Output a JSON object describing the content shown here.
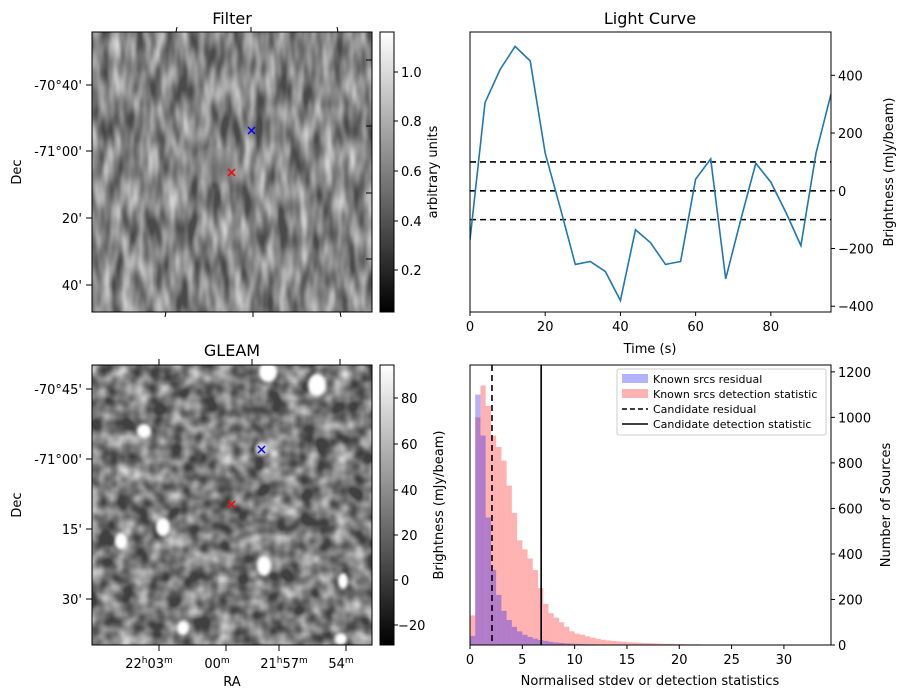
{
  "panels": {
    "filter": {
      "title": "Filter",
      "ylabel": "Dec",
      "yticks": [
        "-70°40'",
        "-71°00'",
        "20'",
        "40'"
      ],
      "colorbar": {
        "label": "arbitrary units",
        "ticks": [
          "0.2",
          "0.4",
          "0.6",
          "0.8",
          "1.0"
        ],
        "cmap": "gray"
      },
      "markers": [
        {
          "symbol": "x",
          "color": "#0000ff"
        },
        {
          "symbol": "x",
          "color": "#ff0000"
        }
      ]
    },
    "gleam": {
      "title": "GLEAM",
      "ylabel": "Dec",
      "xlabel": "RA",
      "yticks": [
        "-70°45'",
        "-71°00'",
        "15'",
        "30'"
      ],
      "xticks": [
        {
          "main": "22",
          "sup1": "h",
          "mid": "03",
          "sup2": "m"
        },
        {
          "main": "00",
          "sup2": "m"
        },
        {
          "main": "21",
          "sup1": "h",
          "mid": "57",
          "sup2": "m"
        },
        {
          "main": "54",
          "sup2": "m"
        }
      ],
      "colorbar": {
        "label": "Brightness (mJy/beam)",
        "ticks": [
          "80",
          "60",
          "40",
          "20",
          "0",
          "−20"
        ],
        "cmap": "gray"
      },
      "markers": [
        {
          "symbol": "x",
          "color": "#0000ff"
        },
        {
          "symbol": "x",
          "color": "#ff0000"
        }
      ]
    }
  },
  "chart_data": [
    {
      "type": "line",
      "title": "Light Curve",
      "xlabel": "Time (s)",
      "ylabel": "Brightness (mJy/beam)",
      "xlim": [
        0,
        96
      ],
      "ylim": [
        -420,
        550
      ],
      "xticks": [
        0,
        20,
        40,
        60,
        80
      ],
      "yticks": [
        -400,
        -200,
        0,
        200,
        400
      ],
      "y_axis_side": "right",
      "line_color": "#1f77b4",
      "series": [
        {
          "x": [
            0,
            4,
            8,
            12,
            16,
            20,
            24,
            28,
            32,
            36,
            40,
            44,
            48,
            52,
            56,
            60,
            64,
            68,
            72,
            76,
            80,
            84,
            88,
            92,
            96
          ],
          "y": [
            -170,
            305,
            420,
            500,
            450,
            130,
            -60,
            -255,
            -245,
            -280,
            -380,
            -135,
            -180,
            -255,
            -245,
            40,
            110,
            -305,
            -100,
            95,
            30,
            -75,
            -190,
            130,
            335
          ]
        }
      ],
      "hlines": [
        {
          "y": 100,
          "style": "dashed",
          "color": "#000000"
        },
        {
          "y": 0,
          "style": "dashed",
          "color": "#000000"
        },
        {
          "y": -100,
          "style": "dashed",
          "color": "#000000"
        }
      ]
    },
    {
      "type": "histogram",
      "xlabel": "Normalised stdev or detection statistics",
      "ylabel": "Number of Sources",
      "ylabel_left": "Brightness (mJy/beam)",
      "xlim": [
        0,
        34.5
      ],
      "ylim": [
        0,
        1230
      ],
      "xticks": [
        0,
        5,
        10,
        15,
        20,
        25,
        30
      ],
      "yticks": [
        0,
        200,
        400,
        600,
        800,
        1000,
        1200
      ],
      "bin_width": 0.5,
      "legend_position": "top-right",
      "series": [
        {
          "name": "Known srcs residual",
          "color": "#0000ff",
          "alpha": 0.3,
          "counts": [
            40,
            1100,
            920,
            560,
            330,
            220,
            150,
            110,
            80,
            60,
            45,
            35,
            28,
            22,
            18,
            14,
            11,
            9,
            7,
            6,
            5,
            4,
            3,
            3,
            2,
            2,
            2,
            1,
            1,
            1
          ]
        },
        {
          "name": "Known srcs detection statistic",
          "color": "#ff0000",
          "alpha": 0.3,
          "counts": [
            130,
            1000,
            1140,
            1050,
            920,
            870,
            810,
            700,
            580,
            460,
            420,
            380,
            330,
            250,
            180,
            140,
            120,
            100,
            80,
            60,
            50,
            45,
            38,
            32,
            27,
            23,
            20,
            18,
            16,
            14,
            12,
            11,
            10,
            9,
            8,
            7,
            6,
            5,
            5,
            4,
            4,
            3,
            3,
            3,
            2,
            2,
            2,
            2,
            1,
            1,
            1,
            1,
            1,
            1,
            1,
            1,
            1,
            1,
            1,
            1,
            1,
            1,
            1,
            1,
            1
          ]
        }
      ],
      "vlines": [
        {
          "name": "Candidate residual",
          "x": 2.1,
          "style": "dashed",
          "color": "#000000"
        },
        {
          "name": "Candidate detection statistic",
          "x": 6.8,
          "style": "solid",
          "color": "#000000"
        }
      ]
    }
  ]
}
